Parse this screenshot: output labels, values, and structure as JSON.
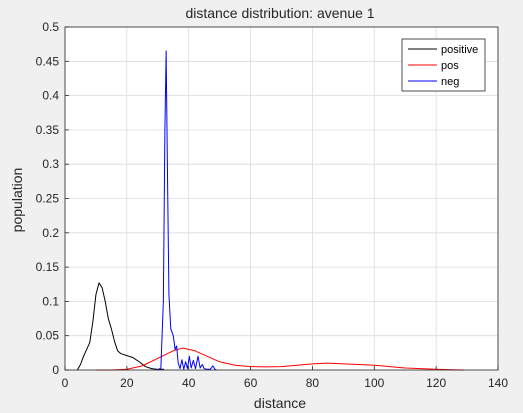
{
  "chart_data": {
    "type": "line",
    "title": "distance distribution: avenue 1",
    "xlabel": "distance",
    "ylabel": "population",
    "xlim": [
      0,
      140
    ],
    "ylim": [
      0,
      0.5
    ],
    "xticks": [
      0,
      20,
      40,
      60,
      80,
      100,
      120,
      140
    ],
    "yticks": [
      0,
      0.05,
      0.1,
      0.15,
      0.2,
      0.25,
      0.3,
      0.35,
      0.4,
      0.45,
      0.5
    ],
    "grid": true,
    "legend_position": "top-right",
    "series": [
      {
        "name": "positive",
        "color": "#000000",
        "points": [
          [
            4,
            0
          ],
          [
            5,
            0.008
          ],
          [
            6,
            0.02
          ],
          [
            7,
            0.03
          ],
          [
            8,
            0.04
          ],
          [
            9,
            0.07
          ],
          [
            10,
            0.11
          ],
          [
            11,
            0.127
          ],
          [
            12,
            0.12
          ],
          [
            13,
            0.1
          ],
          [
            14,
            0.075
          ],
          [
            15,
            0.06
          ],
          [
            16,
            0.042
          ],
          [
            17,
            0.028
          ],
          [
            18,
            0.024
          ],
          [
            20,
            0.021
          ],
          [
            22,
            0.018
          ],
          [
            24,
            0.012
          ],
          [
            26,
            0.005
          ],
          [
            28,
            0.002
          ],
          [
            30,
            0.001
          ],
          [
            32,
            0.001
          ]
        ]
      },
      {
        "name": "pos",
        "color": "#ff0000",
        "points": [
          [
            10,
            0
          ],
          [
            15,
            0
          ],
          [
            20,
            0.001
          ],
          [
            25,
            0.006
          ],
          [
            30,
            0.017
          ],
          [
            35,
            0.028
          ],
          [
            38,
            0.032
          ],
          [
            42,
            0.028
          ],
          [
            46,
            0.02
          ],
          [
            50,
            0.012
          ],
          [
            55,
            0.007
          ],
          [
            60,
            0.005
          ],
          [
            65,
            0.0045
          ],
          [
            70,
            0.005
          ],
          [
            75,
            0.007
          ],
          [
            80,
            0.009
          ],
          [
            85,
            0.01
          ],
          [
            90,
            0.009
          ],
          [
            95,
            0.008
          ],
          [
            100,
            0.007
          ],
          [
            105,
            0.005
          ],
          [
            110,
            0.003
          ],
          [
            115,
            0.002
          ],
          [
            120,
            0.001
          ],
          [
            125,
            0.0003
          ],
          [
            129,
            0
          ]
        ]
      },
      {
        "name": "neg",
        "color": "#0000ff",
        "points": [
          [
            30,
            0
          ],
          [
            31,
            0.003
          ],
          [
            31.8,
            0.1
          ],
          [
            32.3,
            0.35
          ],
          [
            32.7,
            0.465
          ],
          [
            33.1,
            0.3
          ],
          [
            33.6,
            0.11
          ],
          [
            34.2,
            0.06
          ],
          [
            35,
            0.05
          ],
          [
            35.6,
            0.03
          ],
          [
            36.1,
            0.035
          ],
          [
            36.6,
            0.01
          ],
          [
            37.2,
            0.002
          ],
          [
            37.8,
            0.015
          ],
          [
            38.4,
            0.001
          ],
          [
            39,
            0.012
          ],
          [
            39.6,
            0.002
          ],
          [
            40.2,
            0.02
          ],
          [
            40.8,
            0.003
          ],
          [
            41.5,
            0.014
          ],
          [
            42.2,
            0.002
          ],
          [
            43,
            0.02
          ],
          [
            43.7,
            0.003
          ],
          [
            44.4,
            0.008
          ],
          [
            45,
            0.002
          ],
          [
            46,
            0.001
          ],
          [
            47,
            0.001
          ],
          [
            47.8,
            0.006
          ],
          [
            48.5,
            0.001
          ],
          [
            49,
            0
          ]
        ]
      }
    ]
  }
}
